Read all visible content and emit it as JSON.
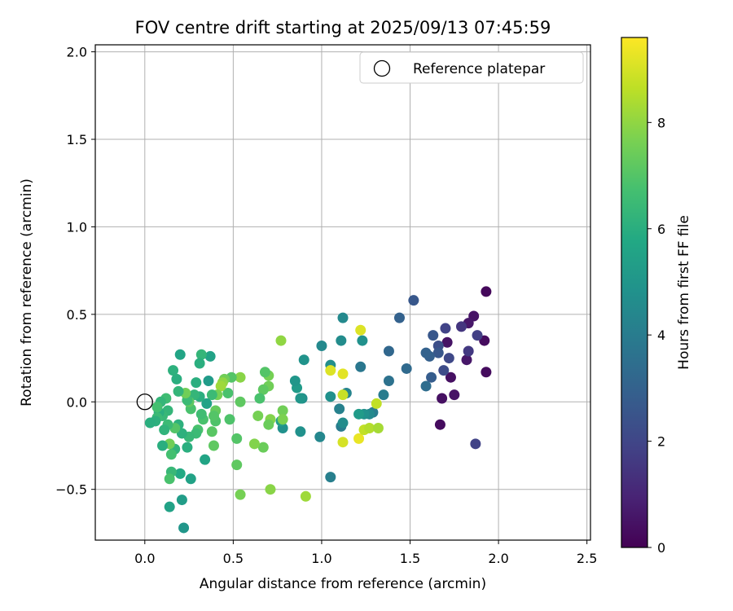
{
  "chart_data": {
    "type": "scatter",
    "title": "FOV centre drift starting at 2025/09/13 07:45:59",
    "xlabel": "Angular distance from reference (arcmin)",
    "ylabel": "Rotation from reference (arcmin)",
    "xlim": [
      -0.28,
      2.52
    ],
    "ylim": [
      -0.79,
      2.04
    ],
    "xticks": [
      0.0,
      0.5,
      1.0,
      1.5,
      2.0,
      2.5
    ],
    "xtick_labels": [
      "0.0",
      "0.5",
      "1.0",
      "1.5",
      "2.0",
      "2.5"
    ],
    "yticks": [
      -0.5,
      0.0,
      0.5,
      1.0,
      1.5,
      2.0
    ],
    "ytick_labels": [
      "−0.5",
      "0.0",
      "0.5",
      "1.0",
      "1.5",
      "2.0"
    ],
    "grid": true,
    "colormap": "viridis",
    "colorbar": {
      "label": "Hours from first FF file",
      "range": [
        0,
        9.6
      ],
      "ticks": [
        0,
        2,
        4,
        6,
        8
      ],
      "tick_labels": [
        "0",
        "2",
        "4",
        "6",
        "8"
      ]
    },
    "legend": {
      "position": "top-right",
      "entries": [
        {
          "label": "Reference platepar",
          "marker": "open-circle"
        }
      ]
    },
    "reference_point": {
      "x": 0.0,
      "y": 0.0
    },
    "points": [
      [
        1.93,
        0.63,
        0.2
      ],
      [
        1.92,
        0.35,
        0.3
      ],
      [
        1.93,
        0.17,
        0.3
      ],
      [
        1.86,
        0.49,
        0.5
      ],
      [
        1.83,
        0.45,
        0.6
      ],
      [
        1.82,
        0.24,
        0.6
      ],
      [
        1.75,
        0.04,
        0.5
      ],
      [
        1.73,
        0.14,
        0.4
      ],
      [
        1.71,
        0.34,
        0.5
      ],
      [
        1.68,
        0.02,
        0.4
      ],
      [
        1.67,
        -0.13,
        0.3
      ],
      [
        1.79,
        0.43,
        1.5
      ],
      [
        1.83,
        0.29,
        1.6
      ],
      [
        1.88,
        0.38,
        1.8
      ],
      [
        1.87,
        -0.24,
        1.9
      ],
      [
        1.7,
        0.42,
        1.9
      ],
      [
        1.72,
        0.25,
        2.1
      ],
      [
        1.69,
        0.18,
        2.2
      ],
      [
        1.66,
        0.32,
        2.3
      ],
      [
        1.66,
        0.28,
        2.6
      ],
      [
        1.63,
        0.38,
        2.6
      ],
      [
        1.62,
        0.14,
        2.8
      ],
      [
        1.61,
        0.26,
        2.9
      ],
      [
        1.59,
        0.28,
        3.0
      ],
      [
        1.52,
        0.58,
        2.6
      ],
      [
        1.59,
        0.09,
        3.4
      ],
      [
        1.44,
        0.48,
        3.0
      ],
      [
        1.48,
        0.19,
        3.3
      ],
      [
        1.38,
        0.29,
        3.2
      ],
      [
        1.38,
        0.12,
        3.6
      ],
      [
        1.35,
        0.04,
        4.0
      ],
      [
        1.29,
        -0.06,
        4.0
      ],
      [
        1.27,
        -0.07,
        4.5
      ],
      [
        1.24,
        -0.07,
        4.8
      ],
      [
        1.21,
        -0.07,
        5.2
      ],
      [
        1.22,
        0.2,
        3.8
      ],
      [
        1.23,
        0.35,
        4.8
      ],
      [
        1.14,
        0.05,
        4.3
      ],
      [
        1.12,
        0.48,
        4.5
      ],
      [
        1.11,
        0.35,
        4.6
      ],
      [
        1.1,
        -0.04,
        4.2
      ],
      [
        1.11,
        -0.14,
        4.0
      ],
      [
        1.12,
        -0.12,
        4.6
      ],
      [
        1.05,
        0.21,
        4.7
      ],
      [
        1.05,
        0.03,
        4.8
      ],
      [
        1.05,
        -0.43,
        4.1
      ],
      [
        1.0,
        0.32,
        4.5
      ],
      [
        0.99,
        -0.2,
        4.4
      ],
      [
        0.9,
        0.24,
        4.9
      ],
      [
        0.89,
        0.02,
        4.7
      ],
      [
        0.88,
        0.02,
        5.0
      ],
      [
        0.88,
        -0.17,
        4.8
      ],
      [
        0.86,
        0.08,
        5.2
      ],
      [
        0.85,
        0.12,
        5.0
      ],
      [
        0.78,
        -0.15,
        4.8
      ],
      [
        0.77,
        -0.11,
        5.4
      ],
      [
        0.7,
        0.09,
        7.5
      ],
      [
        0.7,
        0.15,
        7.6
      ],
      [
        0.71,
        -0.1,
        7.8
      ],
      [
        0.7,
        -0.13,
        7.4
      ],
      [
        0.68,
        0.17,
        7.0
      ],
      [
        0.67,
        -0.26,
        7.4
      ],
      [
        0.67,
        0.07,
        7.2
      ],
      [
        0.65,
        0.02,
        6.8
      ],
      [
        0.64,
        -0.08,
        7.6
      ],
      [
        0.62,
        -0.24,
        7.8
      ],
      [
        0.71,
        -0.5,
        7.9
      ],
      [
        0.77,
        0.35,
        8.0
      ],
      [
        0.78,
        -0.05,
        7.5
      ],
      [
        0.78,
        -0.1,
        7.7
      ],
      [
        0.91,
        -0.54,
        8.2
      ],
      [
        1.05,
        0.18,
        9.1
      ],
      [
        1.12,
        0.16,
        9.2
      ],
      [
        1.12,
        0.04,
        8.8
      ],
      [
        1.12,
        -0.23,
        9.0
      ],
      [
        1.22,
        0.41,
        9.1
      ],
      [
        1.21,
        -0.21,
        9.3
      ],
      [
        1.24,
        -0.16,
        8.7
      ],
      [
        1.27,
        -0.15,
        8.5
      ],
      [
        1.31,
        -0.01,
        8.7
      ],
      [
        1.32,
        -0.15,
        8.3
      ],
      [
        0.54,
        0.14,
        7.9
      ],
      [
        0.54,
        0.0,
        7.2
      ],
      [
        0.54,
        -0.53,
        7.6
      ],
      [
        0.52,
        -0.36,
        7.2
      ],
      [
        0.52,
        -0.21,
        7.0
      ],
      [
        0.49,
        0.14,
        7.0
      ],
      [
        0.48,
        -0.1,
        6.9
      ],
      [
        0.47,
        0.05,
        6.8
      ],
      [
        0.45,
        0.13,
        7.5
      ],
      [
        0.44,
        0.11,
        8.0
      ],
      [
        0.43,
        0.09,
        8.2
      ],
      [
        0.41,
        0.04,
        7.6
      ],
      [
        0.4,
        -0.05,
        7.3
      ],
      [
        0.4,
        -0.11,
        6.9
      ],
      [
        0.39,
        -0.08,
        7.0
      ],
      [
        0.39,
        -0.25,
        7.2
      ],
      [
        0.38,
        -0.17,
        7.1
      ],
      [
        0.38,
        0.04,
        6.5
      ],
      [
        0.37,
        0.26,
        5.5
      ],
      [
        0.36,
        0.12,
        5.2
      ],
      [
        0.35,
        -0.01,
        5.5
      ],
      [
        0.34,
        -0.33,
        5.6
      ],
      [
        0.33,
        -0.1,
        6.8
      ],
      [
        0.32,
        -0.07,
        6.6
      ],
      [
        0.32,
        0.27,
        6.3
      ],
      [
        0.31,
        0.22,
        6.0
      ],
      [
        0.31,
        0.03,
        6.0
      ],
      [
        0.3,
        -0.16,
        6.8
      ],
      [
        0.29,
        0.11,
        6.0
      ],
      [
        0.29,
        -0.18,
        6.5
      ],
      [
        0.28,
        0.04,
        6.3
      ],
      [
        0.26,
        -0.44,
        5.5
      ],
      [
        0.26,
        -0.04,
        6.8
      ],
      [
        0.25,
        0.0,
        7.2
      ],
      [
        0.25,
        -0.2,
        6.4
      ],
      [
        0.24,
        -0.26,
        6.0
      ],
      [
        0.24,
        0.01,
        6.5
      ],
      [
        0.23,
        0.05,
        7.5
      ],
      [
        0.22,
        -0.72,
        5.0
      ],
      [
        0.21,
        -0.56,
        5.3
      ],
      [
        0.21,
        -0.18,
        6.1
      ],
      [
        0.2,
        0.27,
        5.6
      ],
      [
        0.2,
        -0.41,
        5.8
      ],
      [
        0.19,
        0.06,
        6.3
      ],
      [
        0.19,
        -0.13,
        6.1
      ],
      [
        0.18,
        0.13,
        6.0
      ],
      [
        0.17,
        -0.15,
        7.0
      ],
      [
        0.17,
        -0.27,
        6.2
      ],
      [
        0.16,
        0.18,
        6.1
      ],
      [
        0.15,
        -0.3,
        6.7
      ],
      [
        0.15,
        -0.4,
        6.4
      ],
      [
        0.14,
        -0.6,
        5.5
      ],
      [
        0.14,
        -0.44,
        6.8
      ],
      [
        0.14,
        -0.24,
        7.5
      ],
      [
        0.13,
        -0.13,
        6.5
      ],
      [
        0.13,
        -0.05,
        6.3
      ],
      [
        0.12,
        0.02,
        6.6
      ],
      [
        0.11,
        -0.16,
        6.2
      ],
      [
        0.1,
        -0.25,
        6.0
      ],
      [
        0.1,
        -0.08,
        6.4
      ],
      [
        0.09,
        0.0,
        6.3
      ],
      [
        0.08,
        -0.06,
        6.0
      ],
      [
        0.07,
        -0.09,
        6.5
      ],
      [
        0.07,
        -0.03,
        6.7
      ],
      [
        0.06,
        -0.11,
        6.1
      ],
      [
        0.03,
        -0.12,
        6.0
      ]
    ]
  }
}
